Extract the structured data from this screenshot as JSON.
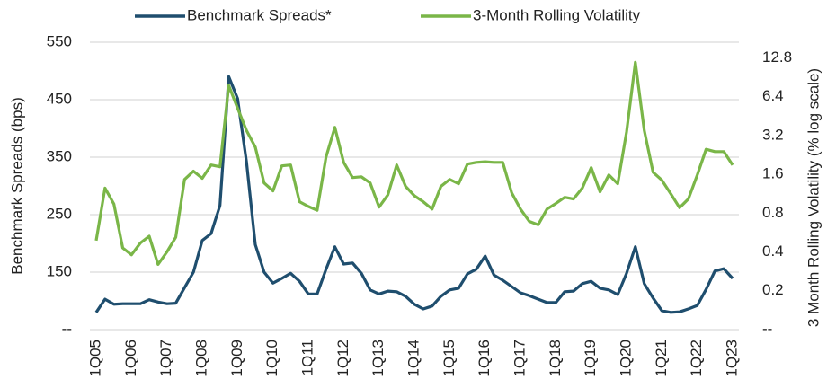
{
  "chart_data": {
    "type": "line",
    "categories": [
      "1Q05",
      null,
      null,
      null,
      "1Q06",
      null,
      null,
      null,
      "1Q07",
      null,
      null,
      null,
      "1Q08",
      null,
      null,
      null,
      "1Q09",
      null,
      null,
      null,
      "1Q10",
      null,
      null,
      null,
      "1Q11",
      null,
      null,
      null,
      "1Q12",
      null,
      null,
      null,
      "1Q13",
      null,
      null,
      null,
      "1Q14",
      null,
      null,
      null,
      "1Q15",
      null,
      null,
      null,
      "1Q16",
      null,
      null,
      null,
      "1Q17",
      null,
      null,
      null,
      "1Q18",
      null,
      null,
      null,
      "1Q19",
      null,
      null,
      null,
      "1Q20",
      null,
      null,
      null,
      "1Q21",
      null,
      null,
      null,
      "1Q22",
      null,
      null,
      null,
      "1Q23"
    ],
    "series": [
      {
        "name": "Benchmark Spreads*",
        "color": "#1f4e6e",
        "values": [
          80,
          103,
          94,
          95,
          95,
          95,
          102,
          98,
          95,
          96,
          123,
          150,
          205,
          217,
          266,
          490,
          452,
          342,
          198,
          150,
          131,
          139,
          148,
          134,
          112,
          112,
          155,
          194,
          164,
          166,
          148,
          119,
          112,
          117,
          116,
          108,
          94,
          86,
          91,
          108,
          119,
          122,
          147,
          155,
          178,
          145,
          136,
          125,
          114,
          109,
          103,
          97,
          97,
          116,
          117,
          130,
          134,
          122,
          119,
          111,
          148,
          194,
          130,
          105,
          83,
          80,
          81,
          86,
          92,
          120,
          152,
          156,
          139
        ]
      },
      {
        "name": "3-Month Rolling Volatility",
        "color": "#7ab648",
        "axis": "y2",
        "values": [
          0.49,
          1.25,
          0.94,
          0.43,
          0.38,
          0.47,
          0.53,
          0.32,
          0.4,
          0.52,
          1.46,
          1.69,
          1.49,
          1.89,
          1.83,
          7.8,
          5.2,
          3.5,
          2.6,
          1.37,
          1.19,
          1.86,
          1.89,
          0.98,
          0.9,
          0.84,
          2.18,
          3.7,
          1.98,
          1.51,
          1.53,
          1.37,
          0.89,
          1.11,
          1.89,
          1.29,
          1.09,
          0.98,
          0.86,
          1.29,
          1.46,
          1.35,
          1.92,
          1.98,
          2.0,
          1.98,
          1.98,
          1.15,
          0.86,
          0.69,
          0.65,
          0.86,
          0.95,
          1.06,
          1.03,
          1.25,
          1.8,
          1.17,
          1.58,
          1.35,
          3.4,
          11.8,
          3.5,
          1.66,
          1.44,
          1.13,
          0.88,
          1.03,
          1.58,
          2.5,
          2.4,
          2.4,
          1.89
        ]
      }
    ],
    "y_label": "Benchmark Spreads (bps)",
    "y2_label": "3 Month Rolling Volatility (% log scale)",
    "ylim": [
      50,
      550
    ],
    "yticks": [
      {
        "value": 50,
        "label": "--"
      },
      150,
      250,
      350,
      450,
      550
    ],
    "y2lim": [
      0.1,
      16.9
    ],
    "y2log": true,
    "y2ticks": [
      {
        "value": 0.1,
        "label": "--"
      },
      0.2,
      0.4,
      0.8,
      1.6,
      3.2,
      6.4,
      12.8
    ],
    "grid": true,
    "legend": "top"
  }
}
